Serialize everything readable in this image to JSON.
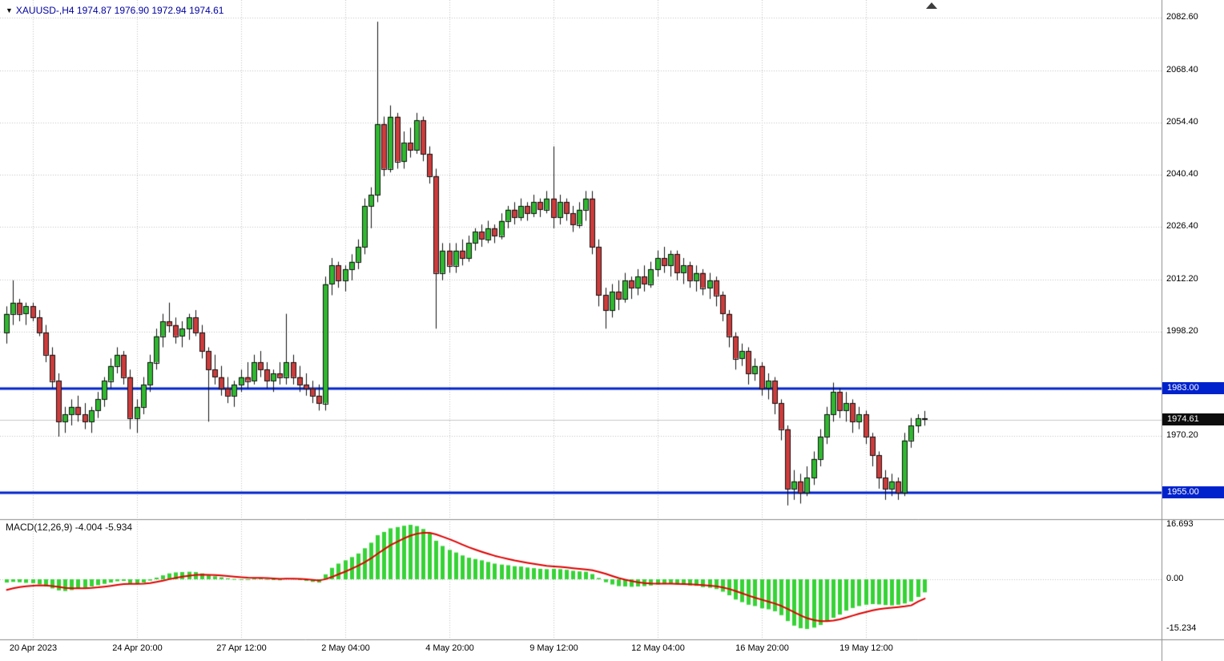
{
  "header": {
    "dropdown_icon": "▼",
    "text": "XAUUSD-,H4 1974.87 1976.90 1972.94 1974.61",
    "color": "#0000A0"
  },
  "chart_data": {
    "type": "candlestick",
    "symbol": "XAUUSD-",
    "timeframe": "H4",
    "last_ohlc": {
      "open": 1974.87,
      "high": 1976.9,
      "low": 1972.94,
      "close": 1974.61
    },
    "price_axis_ticks": [
      "2082.60",
      "2068.40",
      "2054.40",
      "2040.40",
      "2026.40",
      "2012.20",
      "1998.20",
      "1970.20"
    ],
    "time_axis_labels": [
      "20 Apr 2023",
      "24 Apr 20:00",
      "27 Apr 12:00",
      "2 May 04:00",
      "4 May 20:00",
      "9 May 12:00",
      "12 May 04:00",
      "16 May 20:00",
      "19 May 12:00"
    ],
    "horizontal_lines": [
      {
        "price": 1983.0,
        "label": "1983.00",
        "color": "#0022CC"
      },
      {
        "price": 1955.0,
        "label": "1955.00",
        "color": "#0022CC"
      }
    ],
    "current_price": {
      "price": 1974.61,
      "label": "1974.61",
      "bg": "#0d0d0d"
    },
    "colors": {
      "up": "#2FB92F",
      "down": "#CE3C3C",
      "body_border": "#111111",
      "wick": "#111111",
      "macd_bar": "#36D336",
      "macd_signal": "#E00000",
      "grid": "#c4c4c4",
      "separator": "#8c8c8c",
      "cur_line": "#c9c9c9"
    },
    "candles": [
      [
        1998,
        2005,
        1995,
        2003
      ],
      [
        2003,
        2012,
        2000,
        2006
      ],
      [
        2006,
        2007,
        2001,
        2003
      ],
      [
        2003,
        2006,
        2000,
        2005
      ],
      [
        2005,
        2006,
        2001,
        2002
      ],
      [
        2002,
        2004,
        1997,
        1998
      ],
      [
        1998,
        2000,
        1990,
        1992
      ],
      [
        1992,
        1994,
        1983,
        1985
      ],
      [
        1985,
        1987,
        1970,
        1974
      ],
      [
        1974,
        1978,
        1971,
        1976
      ],
      [
        1976,
        1980,
        1973,
        1978
      ],
      [
        1978,
        1981,
        1974,
        1976
      ],
      [
        1976,
        1979,
        1972,
        1974
      ],
      [
        1974,
        1978,
        1971,
        1977
      ],
      [
        1977,
        1982,
        1975,
        1980
      ],
      [
        1980,
        1986,
        1978,
        1985
      ],
      [
        1985,
        1991,
        1983,
        1989
      ],
      [
        1989,
        1994,
        1987,
        1992
      ],
      [
        1992,
        1993,
        1984,
        1986
      ],
      [
        1986,
        1988,
        1972,
        1975
      ],
      [
        1975,
        1980,
        1971,
        1978
      ],
      [
        1978,
        1986,
        1976,
        1984
      ],
      [
        1984,
        1992,
        1982,
        1990
      ],
      [
        1990,
        1999,
        1988,
        1997
      ],
      [
        1997,
        2003,
        1994,
        2001
      ],
      [
        2001,
        2006,
        1998,
        2000
      ],
      [
        2000,
        2002,
        1995,
        1997
      ],
      [
        1997,
        2001,
        1994,
        1999
      ],
      [
        1999,
        2003,
        1996,
        2002
      ],
      [
        2002,
        2004,
        1997,
        1998
      ],
      [
        1998,
        2000,
        1991,
        1993
      ],
      [
        1993,
        1994,
        1974,
        1988
      ],
      [
        1988,
        1992,
        1984,
        1986
      ],
      [
        1986,
        1989,
        1981,
        1983
      ],
      [
        1983,
        1986,
        1979,
        1981
      ],
      [
        1981,
        1985,
        1978,
        1984
      ],
      [
        1984,
        1988,
        1982,
        1986
      ],
      [
        1986,
        1990,
        1983,
        1985
      ],
      [
        1985,
        1992,
        1984,
        1990
      ],
      [
        1990,
        1993,
        1986,
        1988
      ],
      [
        1988,
        1990,
        1983,
        1985
      ],
      [
        1985,
        1988,
        1982,
        1987
      ],
      [
        1987,
        1990,
        1984,
        1986
      ],
      [
        1986,
        2003,
        1984,
        1990
      ],
      [
        1990,
        1992,
        1984,
        1986
      ],
      [
        1986,
        1989,
        1982,
        1984
      ],
      [
        1984,
        1987,
        1981,
        1983
      ],
      [
        1983,
        1985,
        1979,
        1981
      ],
      [
        1981,
        1984,
        1977,
        1979
      ],
      [
        1979,
        2013,
        1977,
        2011
      ],
      [
        2011,
        2018,
        2008,
        2016
      ],
      [
        2016,
        2017,
        2010,
        2012
      ],
      [
        2012,
        2016,
        2009,
        2015
      ],
      [
        2015,
        2019,
        2012,
        2017
      ],
      [
        2017,
        2023,
        2015,
        2021
      ],
      [
        2021,
        2034,
        2019,
        2032
      ],
      [
        2032,
        2037,
        2026,
        2035
      ],
      [
        2035,
        2081.5,
        2033,
        2054
      ],
      [
        2054,
        2056,
        2040,
        2042
      ],
      [
        2042,
        2059,
        2041,
        2056
      ],
      [
        2056,
        2057,
        2042,
        2044
      ],
      [
        2044,
        2052,
        2042,
        2049
      ],
      [
        2049,
        2053,
        2045,
        2047
      ],
      [
        2047,
        2057,
        2046,
        2055
      ],
      [
        2055,
        2056,
        2044,
        2046
      ],
      [
        2046,
        2048,
        2038,
        2040
      ],
      [
        2040,
        2042,
        1999,
        2014
      ],
      [
        2014,
        2022,
        2012,
        2020
      ],
      [
        2020,
        2022,
        2014,
        2016
      ],
      [
        2016,
        2022,
        2014,
        2020
      ],
      [
        2020,
        2023,
        2016,
        2018
      ],
      [
        2018,
        2024,
        2017,
        2022
      ],
      [
        2022,
        2026,
        2020,
        2025
      ],
      [
        2025,
        2027,
        2021,
        2023
      ],
      [
        2023,
        2028,
        2022,
        2026
      ],
      [
        2026,
        2027,
        2022,
        2024
      ],
      [
        2024,
        2030,
        2023,
        2028
      ],
      [
        2028,
        2032,
        2026,
        2031
      ],
      [
        2031,
        2033,
        2027,
        2029
      ],
      [
        2029,
        2034,
        2028,
        2032
      ],
      [
        2032,
        2033,
        2028,
        2030
      ],
      [
        2030,
        2035,
        2029,
        2033
      ],
      [
        2033,
        2034,
        2029,
        2031
      ],
      [
        2031,
        2036,
        2030,
        2034
      ],
      [
        2034,
        2048,
        2026,
        2029
      ],
      [
        2029,
        2035,
        2027,
        2033
      ],
      [
        2033,
        2034,
        2028,
        2030
      ],
      [
        2030,
        2032,
        2025,
        2027
      ],
      [
        2027,
        2033,
        2026,
        2031
      ],
      [
        2031,
        2036,
        2028,
        2034
      ],
      [
        2034,
        2036,
        2019,
        2021
      ],
      [
        2021,
        2023,
        2005,
        2008
      ],
      [
        2008,
        2010,
        1999,
        2004
      ],
      [
        2004,
        2011,
        2002,
        2009
      ],
      [
        2009,
        2012,
        2004,
        2007
      ],
      [
        2007,
        2014,
        2006,
        2012
      ],
      [
        2012,
        2013,
        2007,
        2010
      ],
      [
        2010,
        2015,
        2008,
        2013
      ],
      [
        2013,
        2016,
        2009,
        2011
      ],
      [
        2011,
        2017,
        2010,
        2015
      ],
      [
        2015,
        2020,
        2013,
        2018
      ],
      [
        2018,
        2021,
        2014,
        2016
      ],
      [
        2016,
        2020,
        2013,
        2019
      ],
      [
        2019,
        2020,
        2012,
        2014
      ],
      [
        2014,
        2018,
        2011,
        2016
      ],
      [
        2016,
        2017,
        2010,
        2012
      ],
      [
        2012,
        2016,
        2009,
        2014
      ],
      [
        2014,
        2015,
        2008,
        2010
      ],
      [
        2010,
        2014,
        2007,
        2012
      ],
      [
        2012,
        2013,
        2005,
        2008
      ],
      [
        2008,
        2009,
        2001,
        2003
      ],
      [
        2003,
        2004,
        1994,
        1997
      ],
      [
        1997,
        1998,
        1988,
        1991
      ],
      [
        1991,
        1995,
        1989,
        1993
      ],
      [
        1993,
        1994,
        1984,
        1987
      ],
      [
        1987,
        1991,
        1985,
        1989
      ],
      [
        1989,
        1990,
        1981,
        1983
      ],
      [
        1983,
        1987,
        1980,
        1985
      ],
      [
        1985,
        1986,
        1976,
        1979
      ],
      [
        1979,
        1980,
        1969,
        1972
      ],
      [
        1972,
        1973,
        1951.5,
        1956
      ],
      [
        1956,
        1961,
        1953,
        1958
      ],
      [
        1958,
        1960,
        1952,
        1955
      ],
      [
        1955,
        1962,
        1954,
        1959
      ],
      [
        1959,
        1966,
        1957,
        1964
      ],
      [
        1964,
        1972,
        1962,
        1970
      ],
      [
        1970,
        1978,
        1968,
        1976
      ],
      [
        1976,
        1984.5,
        1974,
        1982
      ],
      [
        1982,
        1983,
        1975,
        1977
      ],
      [
        1977,
        1982,
        1974,
        1979
      ],
      [
        1979,
        1980,
        1971,
        1974
      ],
      [
        1974,
        1978,
        1972,
        1976
      ],
      [
        1976,
        1977,
        1968,
        1970
      ],
      [
        1970,
        1971,
        1962,
        1965
      ],
      [
        1965,
        1966,
        1956,
        1959
      ],
      [
        1959,
        1961,
        1953,
        1956
      ],
      [
        1956,
        1960,
        1954,
        1958
      ],
      [
        1958,
        1959,
        1953,
        1955
      ],
      [
        1955,
        1971,
        1954,
        1969
      ],
      [
        1969,
        1975,
        1967,
        1973
      ],
      [
        1973,
        1976,
        1971,
        1974.9
      ],
      [
        1974.87,
        1976.9,
        1972.94,
        1974.61
      ]
    ],
    "macd": {
      "name": "MACD(12,26,9)",
      "values_text": "-4.004 -5.934",
      "macd_value": -4.004,
      "signal_value": -5.934,
      "axis_ticks": [
        "16.693",
        "0.00",
        "-15.234"
      ],
      "histogram": [
        -1.0,
        -0.8,
        -0.9,
        -1.1,
        -1.2,
        -1.5,
        -2.2,
        -2.8,
        -3.4,
        -3.6,
        -3.3,
        -2.9,
        -2.6,
        -2.2,
        -1.8,
        -1.4,
        -1.0,
        -0.6,
        -0.5,
        -1.2,
        -1.4,
        -1.0,
        -0.4,
        0.5,
        1.2,
        1.8,
        2.1,
        2.2,
        2.3,
        2.2,
        1.8,
        1.2,
        0.9,
        0.6,
        0.3,
        0.1,
        0.0,
        -0.1,
        0.2,
        0.3,
        0.1,
        -0.2,
        -0.3,
        0.3,
        0.2,
        -0.2,
        -0.5,
        -0.8,
        -1.0,
        1.5,
        3.5,
        4.8,
        5.8,
        6.8,
        7.9,
        9.5,
        11.2,
        13.5,
        14.5,
        15.6,
        16.0,
        16.4,
        16.69,
        16.3,
        15.4,
        14.2,
        11.8,
        10.2,
        9.0,
        8.2,
        7.3,
        6.6,
        6.2,
        5.8,
        5.3,
        4.8,
        4.5,
        4.3,
        4.0,
        3.9,
        3.6,
        3.4,
        3.2,
        3.1,
        3.2,
        3.1,
        2.9,
        2.6,
        2.4,
        2.3,
        1.6,
        0.4,
        -0.9,
        -1.6,
        -2.1,
        -2.2,
        -2.3,
        -2.2,
        -2.1,
        -1.9,
        -1.6,
        -1.5,
        -1.4,
        -1.6,
        -1.7,
        -1.9,
        -2.0,
        -2.4,
        -2.6,
        -3.0,
        -3.8,
        -4.9,
        -6.2,
        -7.0,
        -7.8,
        -8.2,
        -8.9,
        -9.2,
        -9.8,
        -11.0,
        -12.8,
        -14.2,
        -15.0,
        -15.23,
        -14.8,
        -14.0,
        -13.0,
        -11.8,
        -10.8,
        -9.6,
        -8.8,
        -8.2,
        -7.8,
        -7.6,
        -7.7,
        -7.9,
        -8.0,
        -7.8,
        -7.4,
        -6.8,
        -5.4,
        -4.004
      ],
      "signal": [
        -3.24,
        -2.75,
        -2.38,
        -2.12,
        -1.94,
        -1.85,
        -1.92,
        -2.1,
        -2.36,
        -2.61,
        -2.75,
        -2.78,
        -2.74,
        -2.63,
        -2.47,
        -2.25,
        -2.0,
        -1.72,
        -1.48,
        -1.42,
        -1.42,
        -1.33,
        -1.15,
        -0.82,
        -0.41,
        0.03,
        0.44,
        0.79,
        1.09,
        1.32,
        1.41,
        1.37,
        1.28,
        1.14,
        0.97,
        0.8,
        0.64,
        0.49,
        0.43,
        0.41,
        0.34,
        0.24,
        0.13,
        0.16,
        0.17,
        0.1,
        -0.02,
        -0.18,
        -0.34,
        0.03,
        0.72,
        1.54,
        2.39,
        3.27,
        4.2,
        5.26,
        6.45,
        7.86,
        9.19,
        10.47,
        11.58,
        12.54,
        13.37,
        13.96,
        14.25,
        14.24,
        13.75,
        13.04,
        12.23,
        11.43,
        10.6,
        9.8,
        9.08,
        8.42,
        7.8,
        7.2,
        6.66,
        6.19,
        5.75,
        5.38,
        5.02,
        4.7,
        4.4,
        4.14,
        3.95,
        3.78,
        3.6,
        3.4,
        3.2,
        3.02,
        2.74,
        2.27,
        1.64,
        0.99,
        0.37,
        -0.14,
        -0.57,
        -0.9,
        -1.14,
        -1.29,
        -1.35,
        -1.38,
        -1.38,
        -1.43,
        -1.48,
        -1.56,
        -1.65,
        -1.8,
        -1.96,
        -2.17,
        -2.5,
        -2.98,
        -3.62,
        -4.3,
        -5.0,
        -5.64,
        -6.29,
        -6.87,
        -7.46,
        -8.17,
        -9.09,
        -10.11,
        -11.09,
        -11.92,
        -12.5,
        -12.8,
        -12.84,
        -12.63,
        -12.26,
        -11.73,
        -11.14,
        -10.55,
        -10.0,
        -9.52,
        -9.16,
        -8.91,
        -8.73,
        -8.54,
        -8.31,
        -8.01,
        -6.8,
        -5.93
      ]
    }
  }
}
